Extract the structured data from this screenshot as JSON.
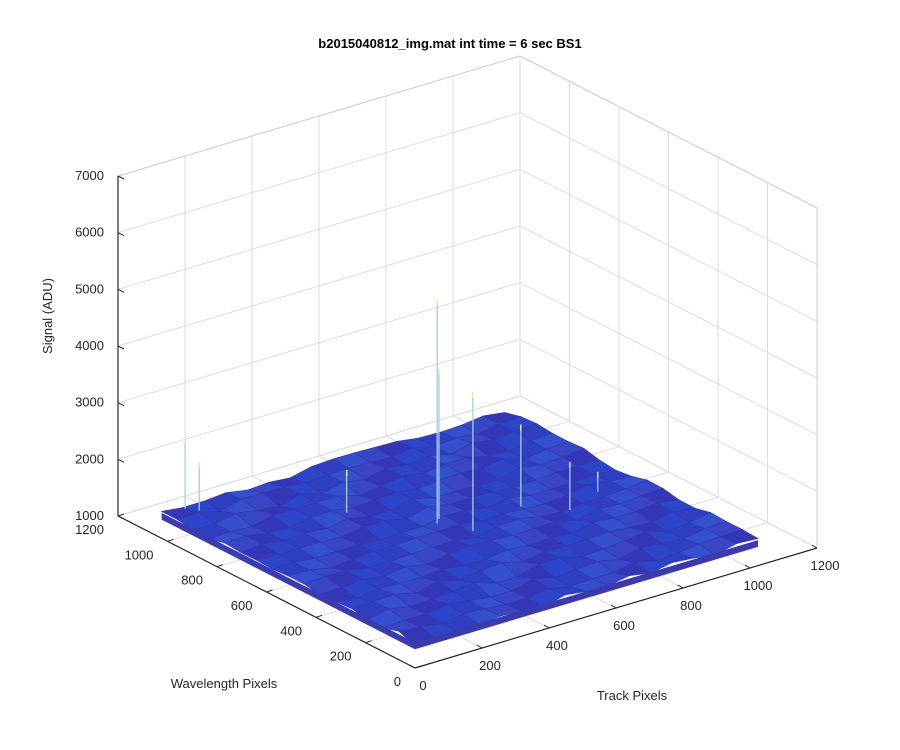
{
  "chart_data": {
    "type": "surface",
    "title": "b2015040812_img.mat int time = 6 sec   BS1",
    "xlabel": "Track Pixels",
    "ylabel": "Wavelength Pixels",
    "zlabel": "Signal (ADU)",
    "xlim": [
      0,
      1200
    ],
    "ylim": [
      0,
      1200
    ],
    "zlim": [
      1000,
      7000
    ],
    "xticks": [
      "0",
      "200",
      "400",
      "600",
      "800",
      "1000",
      "1200"
    ],
    "yticks": [
      "0",
      "200",
      "400",
      "600",
      "800",
      "1000",
      "1200"
    ],
    "zticks": [
      "1000",
      "2000",
      "3000",
      "4000",
      "5000",
      "6000",
      "7000"
    ],
    "grid": true,
    "colormap": [
      "#3a3ab8",
      "#2a5fd8",
      "#1f9fe6",
      "#f5f07a"
    ],
    "surface": {
      "x_extent": [
        0,
        1024
      ],
      "y_extent": [
        0,
        1024
      ],
      "baseline_signal": 1450,
      "noise_amplitude": 120,
      "spikes": [
        {
          "x": 480,
          "y": 560,
          "z": 5400
        },
        {
          "x": 500,
          "y": 580,
          "z": 4100
        },
        {
          "x": 520,
          "y": 470,
          "z": 3900
        },
        {
          "x": 60,
          "y": 1010,
          "z": 2700
        },
        {
          "x": 80,
          "y": 980,
          "z": 2300
        },
        {
          "x": 700,
          "y": 520,
          "z": 2900
        },
        {
          "x": 780,
          "y": 430,
          "z": 2300
        },
        {
          "x": 900,
          "y": 480,
          "z": 1800
        },
        {
          "x": 350,
          "y": 750,
          "z": 2200
        }
      ]
    }
  }
}
